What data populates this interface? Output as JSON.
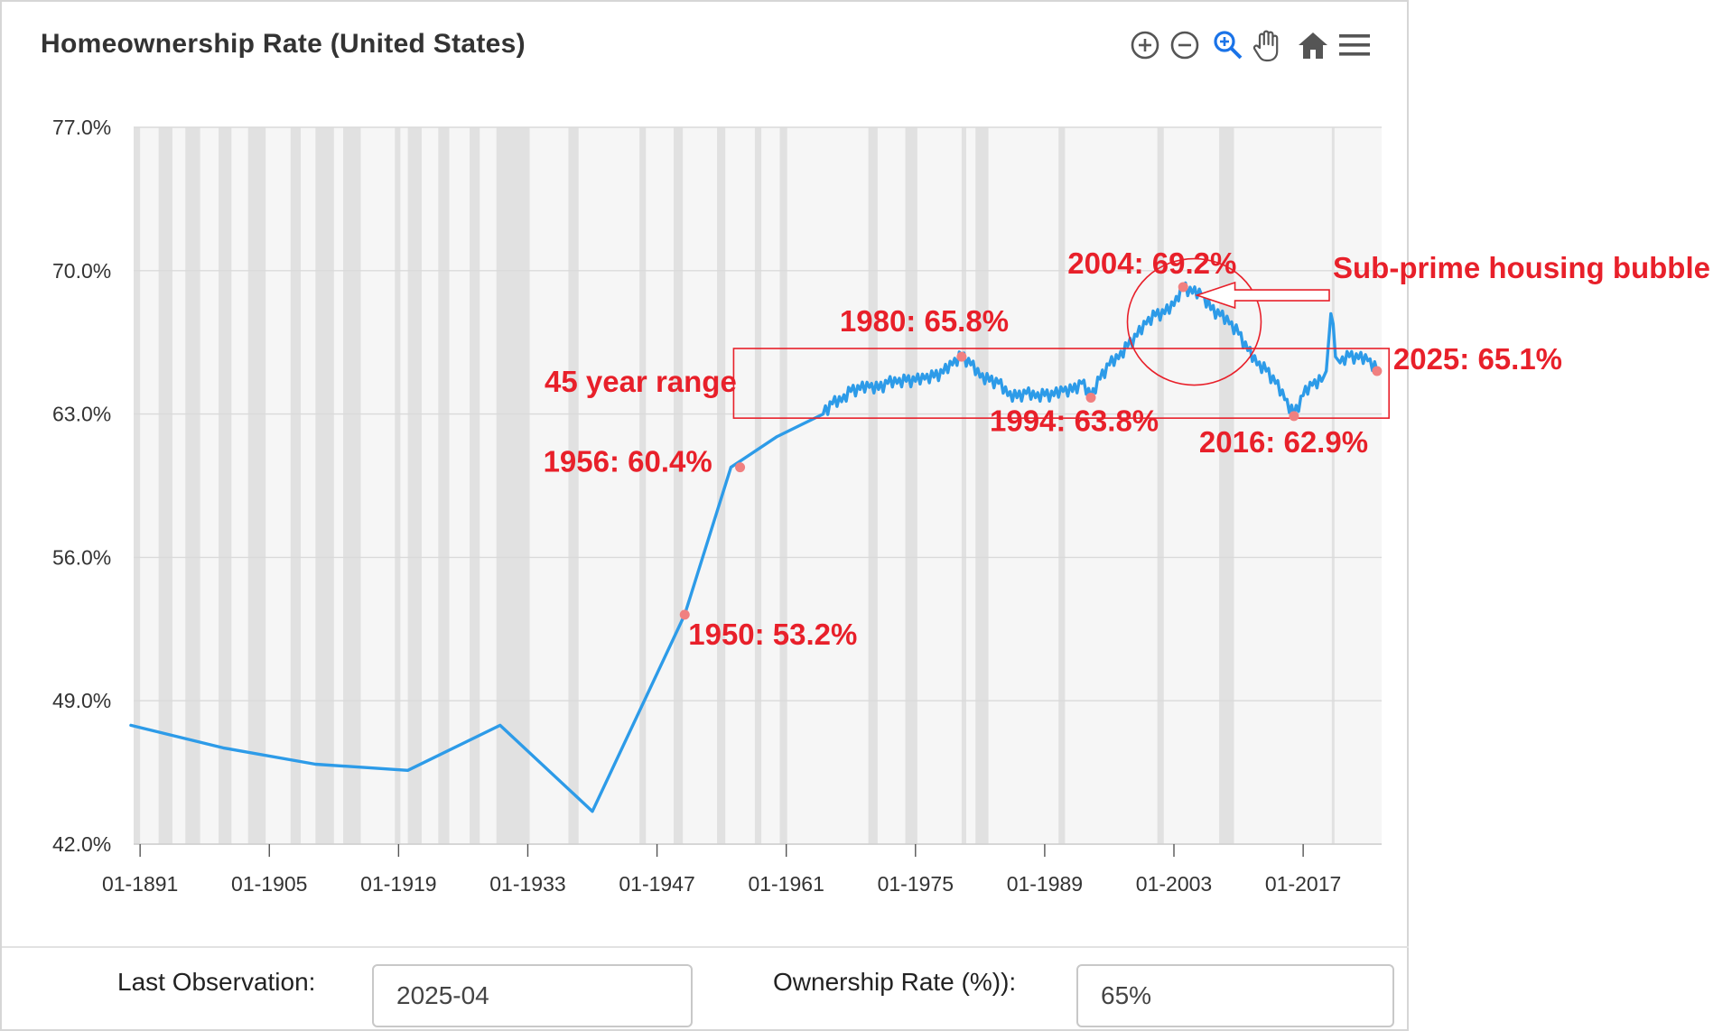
{
  "title": "Homeownership Rate (United States)",
  "toolbar": {
    "icons": [
      "zoom-in-icon",
      "zoom-out-icon",
      "selection-zoom-icon",
      "pan-hand-icon",
      "reset-home-icon",
      "menu-icon"
    ]
  },
  "footer": {
    "last_observation_label": "Last Observation:",
    "last_observation_value": "2025-04",
    "rate_label": "Ownership Rate (%)):",
    "rate_value": "65%"
  },
  "colors": {
    "series": "#2d9be8",
    "annotation": "#e8202a",
    "marker": "#f08080",
    "recession_band": "#e1e1e1",
    "plot_background": "#f6f6f6"
  },
  "chart_data": {
    "type": "line",
    "title": "Homeownership Rate (United States)",
    "xlabel": "",
    "ylabel": "",
    "ylim": [
      42,
      77
    ],
    "xlim": [
      1890.3,
      2025.5
    ],
    "y_ticks": [
      "77.0%",
      "70.0%",
      "63.0%",
      "56.0%",
      "49.0%",
      "42.0%"
    ],
    "y_tick_values": [
      77,
      70,
      63,
      56,
      49,
      42
    ],
    "x_ticks": [
      "01-1891",
      "01-1905",
      "01-1919",
      "01-1933",
      "01-1947",
      "01-1961",
      "01-1975",
      "01-1989",
      "01-2003",
      "01-2017"
    ],
    "x_tick_values": [
      1891,
      1905,
      1919,
      1933,
      1947,
      1961,
      1975,
      1989,
      2003,
      2017
    ],
    "grid": true,
    "series": [
      {
        "name": "Homeownership Rate",
        "x": [
          1890,
          1900,
          1910,
          1920,
          1930,
          1940,
          1950,
          1955,
          1960,
          1965,
          1966,
          1967,
          1968,
          1969,
          1970,
          1971,
          1972,
          1973,
          1974,
          1975,
          1976,
          1977,
          1978,
          1979,
          1980,
          1981,
          1982,
          1983,
          1984,
          1985,
          1986,
          1987,
          1988,
          1989,
          1990,
          1991,
          1992,
          1993,
          1994,
          1995,
          1996,
          1997,
          1998,
          1999,
          2000,
          2001,
          2002,
          2003,
          2004,
          2005,
          2006,
          2007,
          2008,
          2009,
          2010,
          2011,
          2012,
          2013,
          2014,
          2015,
          2016,
          2017,
          2018,
          2019,
          2019.5,
          2020,
          2020.25,
          2020.5,
          2021,
          2022,
          2023,
          2024,
          2025
        ],
        "y": [
          47.8,
          46.7,
          45.9,
          45.6,
          47.8,
          43.6,
          53.2,
          60.4,
          61.9,
          63.0,
          63.5,
          63.6,
          64.1,
          64.2,
          64.3,
          64.2,
          64.5,
          64.5,
          64.6,
          64.6,
          64.7,
          64.8,
          65.0,
          65.4,
          65.8,
          65.4,
          64.8,
          64.6,
          64.5,
          63.9,
          63.8,
          64.0,
          63.8,
          63.9,
          63.9,
          64.1,
          64.1,
          64.5,
          63.8,
          64.7,
          65.4,
          65.7,
          66.3,
          66.8,
          67.4,
          67.8,
          67.9,
          68.3,
          69.2,
          68.9,
          68.8,
          68.1,
          67.8,
          67.4,
          66.9,
          66.1,
          65.4,
          65.1,
          64.5,
          63.7,
          62.9,
          63.9,
          64.4,
          64.6,
          65.1,
          67.9,
          67.4,
          65.8,
          65.5,
          65.8,
          65.7,
          65.6,
          65.1
        ]
      }
    ],
    "annotations": [
      {
        "text": "1950:  53.2%",
        "x": 1950,
        "y": 53.2
      },
      {
        "text": "1956: 60.4%",
        "x": 1956,
        "y": 60.4
      },
      {
        "text": "1980: 65.8%",
        "x": 1980,
        "y": 65.8
      },
      {
        "text": "1994: 63.8%",
        "x": 1994,
        "y": 63.8
      },
      {
        "text": "2004: 69.2%",
        "x": 2004,
        "y": 69.2
      },
      {
        "text": "2016: 62.9%",
        "x": 2016,
        "y": 62.9
      },
      {
        "text": "2025:  65.1%",
        "x": 2025,
        "y": 65.1
      },
      {
        "text": "45 year range"
      },
      {
        "text": "Sub-prime housing bubble"
      }
    ],
    "recession_bands": [
      [
        1890.2,
        1891.0
      ],
      [
        1893.0,
        1894.5
      ],
      [
        1895.9,
        1897.5
      ],
      [
        1899.5,
        1900.9
      ],
      [
        1902.7,
        1904.6
      ],
      [
        1907.3,
        1908.4
      ],
      [
        1910.0,
        1912.0
      ],
      [
        1913.0,
        1914.9
      ],
      [
        1918.6,
        1919.2
      ],
      [
        1920.0,
        1921.5
      ],
      [
        1923.3,
        1924.5
      ],
      [
        1926.7,
        1927.8
      ],
      [
        1929.6,
        1933.2
      ],
      [
        1937.4,
        1938.5
      ],
      [
        1945.1,
        1945.8
      ],
      [
        1948.8,
        1949.8
      ],
      [
        1953.5,
        1954.4
      ],
      [
        1957.6,
        1958.3
      ],
      [
        1960.3,
        1961.1
      ],
      [
        1969.9,
        1970.9
      ],
      [
        1973.9,
        1975.2
      ],
      [
        1980.0,
        1980.5
      ],
      [
        1981.5,
        1982.9
      ],
      [
        1990.5,
        1991.2
      ],
      [
        2001.2,
        2001.9
      ],
      [
        2007.9,
        2009.5
      ],
      [
        2020.1,
        2020.4
      ]
    ]
  }
}
